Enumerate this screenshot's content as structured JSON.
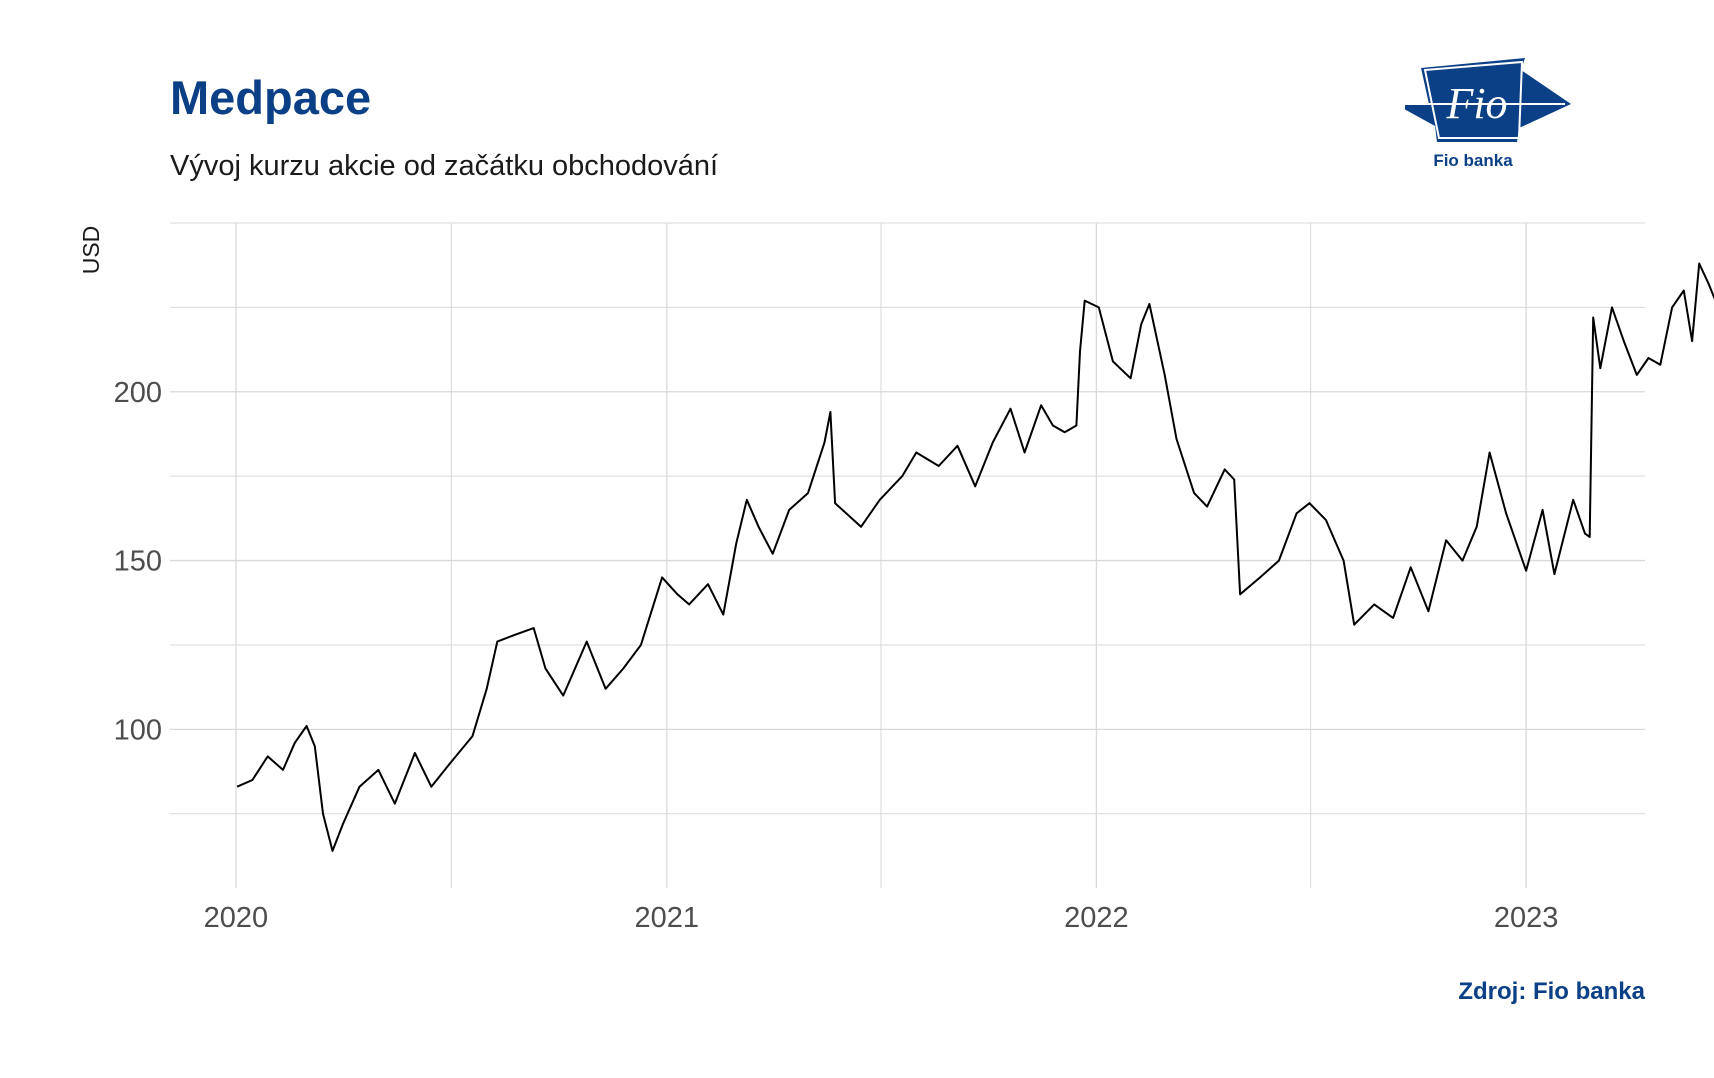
{
  "header": {
    "title": "Medpace",
    "subtitle": "Vývoj kurzu akcie od začátku obchodování"
  },
  "logo": {
    "mark_text": "Fio",
    "caption": "Fio banka",
    "color": "#0b3f86"
  },
  "footer": {
    "source": "Zdroj: Fio banka"
  },
  "colors": {
    "title": "#0b3f86",
    "line": "#000000",
    "grid": "#d9d9d9"
  },
  "chart_data": {
    "type": "line",
    "title": "Medpace",
    "subtitle": "Vývoj kurzu akcie od začátku obchodování",
    "xlabel": "",
    "ylabel": "USD",
    "x_ticks": [
      "2020",
      "2021",
      "2022",
      "2023"
    ],
    "y_ticks": [
      100,
      150,
      200
    ],
    "xlim": [
      "2019-11-06",
      "2023-04-12"
    ],
    "ylim": [
      53,
      250
    ],
    "grid": true,
    "legend": "none",
    "series": [
      {
        "points": [
          [
            "2020-01-02",
            83
          ],
          [
            "2020-01-15",
            85
          ],
          [
            "2020-01-28",
            92
          ],
          [
            "2020-02-10",
            88
          ],
          [
            "2020-02-20",
            96
          ],
          [
            "2020-03-01",
            101
          ],
          [
            "2020-03-08",
            95
          ],
          [
            "2020-03-15",
            75
          ],
          [
            "2020-03-23",
            64
          ],
          [
            "2020-04-01",
            72
          ],
          [
            "2020-04-15",
            83
          ],
          [
            "2020-05-01",
            88
          ],
          [
            "2020-05-15",
            78
          ],
          [
            "2020-06-01",
            93
          ],
          [
            "2020-06-15",
            83
          ],
          [
            "2020-07-01",
            90
          ],
          [
            "2020-07-20",
            98
          ],
          [
            "2020-08-01",
            112
          ],
          [
            "2020-08-10",
            126
          ],
          [
            "2020-08-25",
            128
          ],
          [
            "2020-09-10",
            130
          ],
          [
            "2020-09-20",
            118
          ],
          [
            "2020-10-05",
            110
          ],
          [
            "2020-10-25",
            126
          ],
          [
            "2020-11-10",
            112
          ],
          [
            "2020-11-25",
            118
          ],
          [
            "2020-12-10",
            125
          ],
          [
            "2020-12-28",
            145
          ],
          [
            "2021-01-10",
            140
          ],
          [
            "2021-01-20",
            137
          ],
          [
            "2021-02-05",
            143
          ],
          [
            "2021-02-18",
            134
          ],
          [
            "2021-03-01",
            155
          ],
          [
            "2021-03-10",
            168
          ],
          [
            "2021-03-20",
            160
          ],
          [
            "2021-04-01",
            152
          ],
          [
            "2021-04-15",
            165
          ],
          [
            "2021-05-01",
            170
          ],
          [
            "2021-05-15",
            185
          ],
          [
            "2021-05-20",
            194
          ],
          [
            "2021-05-24",
            167
          ],
          [
            "2021-06-15",
            160
          ],
          [
            "2021-07-01",
            168
          ],
          [
            "2021-07-20",
            175
          ],
          [
            "2021-08-01",
            182
          ],
          [
            "2021-08-20",
            178
          ],
          [
            "2021-09-05",
            184
          ],
          [
            "2021-09-20",
            172
          ],
          [
            "2021-10-05",
            185
          ],
          [
            "2021-10-20",
            195
          ],
          [
            "2021-11-01",
            182
          ],
          [
            "2021-11-15",
            196
          ],
          [
            "2021-11-25",
            190
          ],
          [
            "2021-12-05",
            188
          ],
          [
            "2021-12-15",
            190
          ],
          [
            "2021-12-18",
            212
          ],
          [
            "2021-12-22",
            227
          ],
          [
            "2022-01-03",
            225
          ],
          [
            "2022-01-15",
            209
          ],
          [
            "2022-01-30",
            204
          ],
          [
            "2022-02-08",
            220
          ],
          [
            "2022-02-15",
            226
          ],
          [
            "2022-02-28",
            205
          ],
          [
            "2022-03-10",
            186
          ],
          [
            "2022-03-25",
            170
          ],
          [
            "2022-04-05",
            166
          ],
          [
            "2022-04-20",
            177
          ],
          [
            "2022-04-28",
            174
          ],
          [
            "2022-05-03",
            140
          ],
          [
            "2022-05-20",
            145
          ],
          [
            "2022-06-05",
            150
          ],
          [
            "2022-06-20",
            164
          ],
          [
            "2022-07-01",
            167
          ],
          [
            "2022-07-15",
            162
          ],
          [
            "2022-07-30",
            150
          ],
          [
            "2022-08-08",
            131
          ],
          [
            "2022-08-25",
            137
          ],
          [
            "2022-09-10",
            133
          ],
          [
            "2022-09-25",
            148
          ],
          [
            "2022-10-10",
            135
          ],
          [
            "2022-10-25",
            156
          ],
          [
            "2022-11-08",
            150
          ],
          [
            "2022-11-20",
            160
          ],
          [
            "2022-12-01",
            182
          ],
          [
            "2022-12-15",
            164
          ],
          [
            "2023-01-01",
            147
          ],
          [
            "2023-01-15",
            165
          ],
          [
            "2023-01-25",
            146
          ],
          [
            "2023-02-10",
            168
          ],
          [
            "2023-02-20",
            158
          ],
          [
            "2023-02-24",
            157
          ],
          [
            "2023-02-27",
            222
          ],
          [
            "2023-03-05",
            207
          ],
          [
            "2023-03-15",
            225
          ],
          [
            "2023-03-25",
            215
          ],
          [
            "2023-04-05",
            205
          ],
          [
            "2023-04-15",
            210
          ],
          [
            "2023-04-25",
            208
          ],
          [
            "2023-05-05",
            225
          ],
          [
            "2023-05-15",
            230
          ],
          [
            "2023-05-22",
            215
          ],
          [
            "2023-05-28",
            238
          ],
          [
            "2023-06-05",
            232
          ],
          [
            "2023-06-12",
            226
          ]
        ]
      }
    ]
  }
}
